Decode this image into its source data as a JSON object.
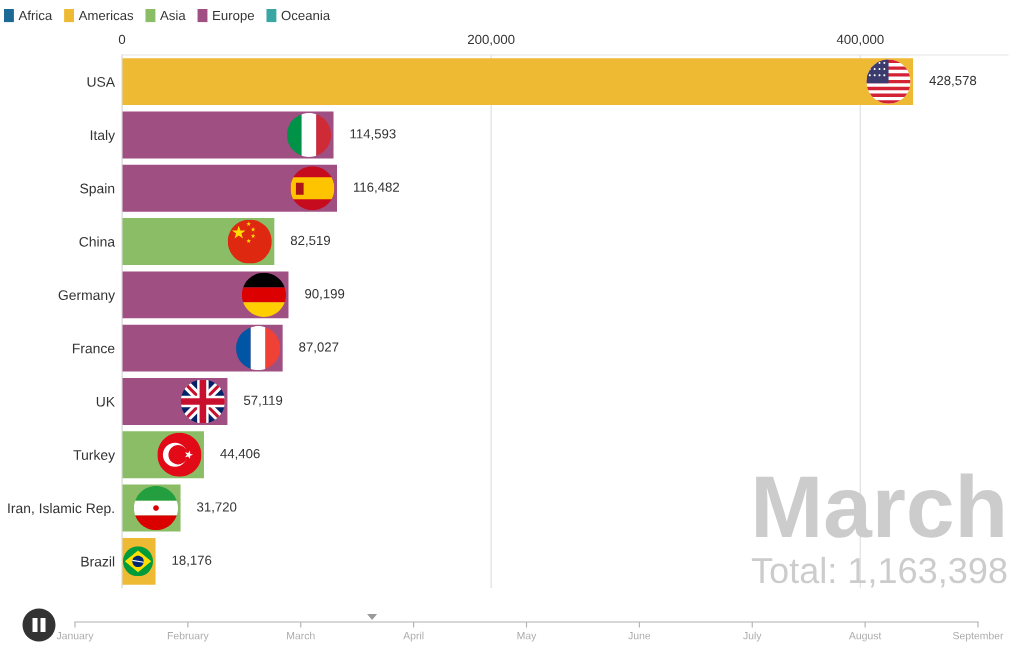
{
  "chart_data": [
    {
      "type": "bar",
      "orientation": "horizontal",
      "stacked": true,
      "categories": [
        "USA",
        "Italy",
        "Spain",
        "China",
        "Germany",
        "France",
        "UK",
        "Turkey",
        "Iran, Islamic Rep.",
        "Brazil"
      ],
      "series": [
        {
          "name": "Africa",
          "color": "#1d6996",
          "values": [
            null,
            null,
            null,
            null,
            null,
            null,
            null,
            null,
            null,
            null
          ]
        },
        {
          "name": "Americas",
          "color": "#efba33",
          "values": [
            428578,
            null,
            null,
            null,
            null,
            null,
            null,
            null,
            null,
            18176
          ],
          "value_labels": [
            "428,578",
            null,
            null,
            null,
            null,
            null,
            null,
            null,
            null,
            "18,176"
          ]
        },
        {
          "name": "Asia",
          "color": "#8abd65",
          "values": [
            null,
            null,
            null,
            82519,
            null,
            null,
            null,
            44406,
            31720,
            null
          ],
          "value_labels": [
            null,
            null,
            null,
            "82,519",
            null,
            null,
            null,
            "44,406",
            "31,720",
            null
          ]
        },
        {
          "name": "Europe",
          "color": "#a04f82",
          "values": [
            null,
            114593,
            116482,
            null,
            90199,
            87027,
            57119,
            null,
            null,
            null
          ],
          "value_labels": [
            null,
            "114,593",
            "116,482",
            null,
            "90,199",
            "87,027",
            "57,119",
            null,
            null,
            null
          ]
        },
        {
          "name": "Oceania",
          "color": "#38a6a5",
          "values": [
            null,
            null,
            null,
            null,
            null,
            null,
            null,
            null,
            null,
            null
          ]
        }
      ],
      "xlim": [
        0,
        480000
      ],
      "xticks": [
        0,
        {
          "value": 200000,
          "label": "200,000"
        },
        {
          "value": 400000,
          "label": "400,000"
        }
      ],
      "grid": "x",
      "legend": "top left",
      "annotations": [
        "March",
        "Total: 1,163,398"
      ]
    },
    {
      "type": "other",
      "categories": [
        "January",
        "February",
        "March",
        "April",
        "May",
        "June",
        "July",
        "August",
        "September"
      ]
    }
  ]
}
